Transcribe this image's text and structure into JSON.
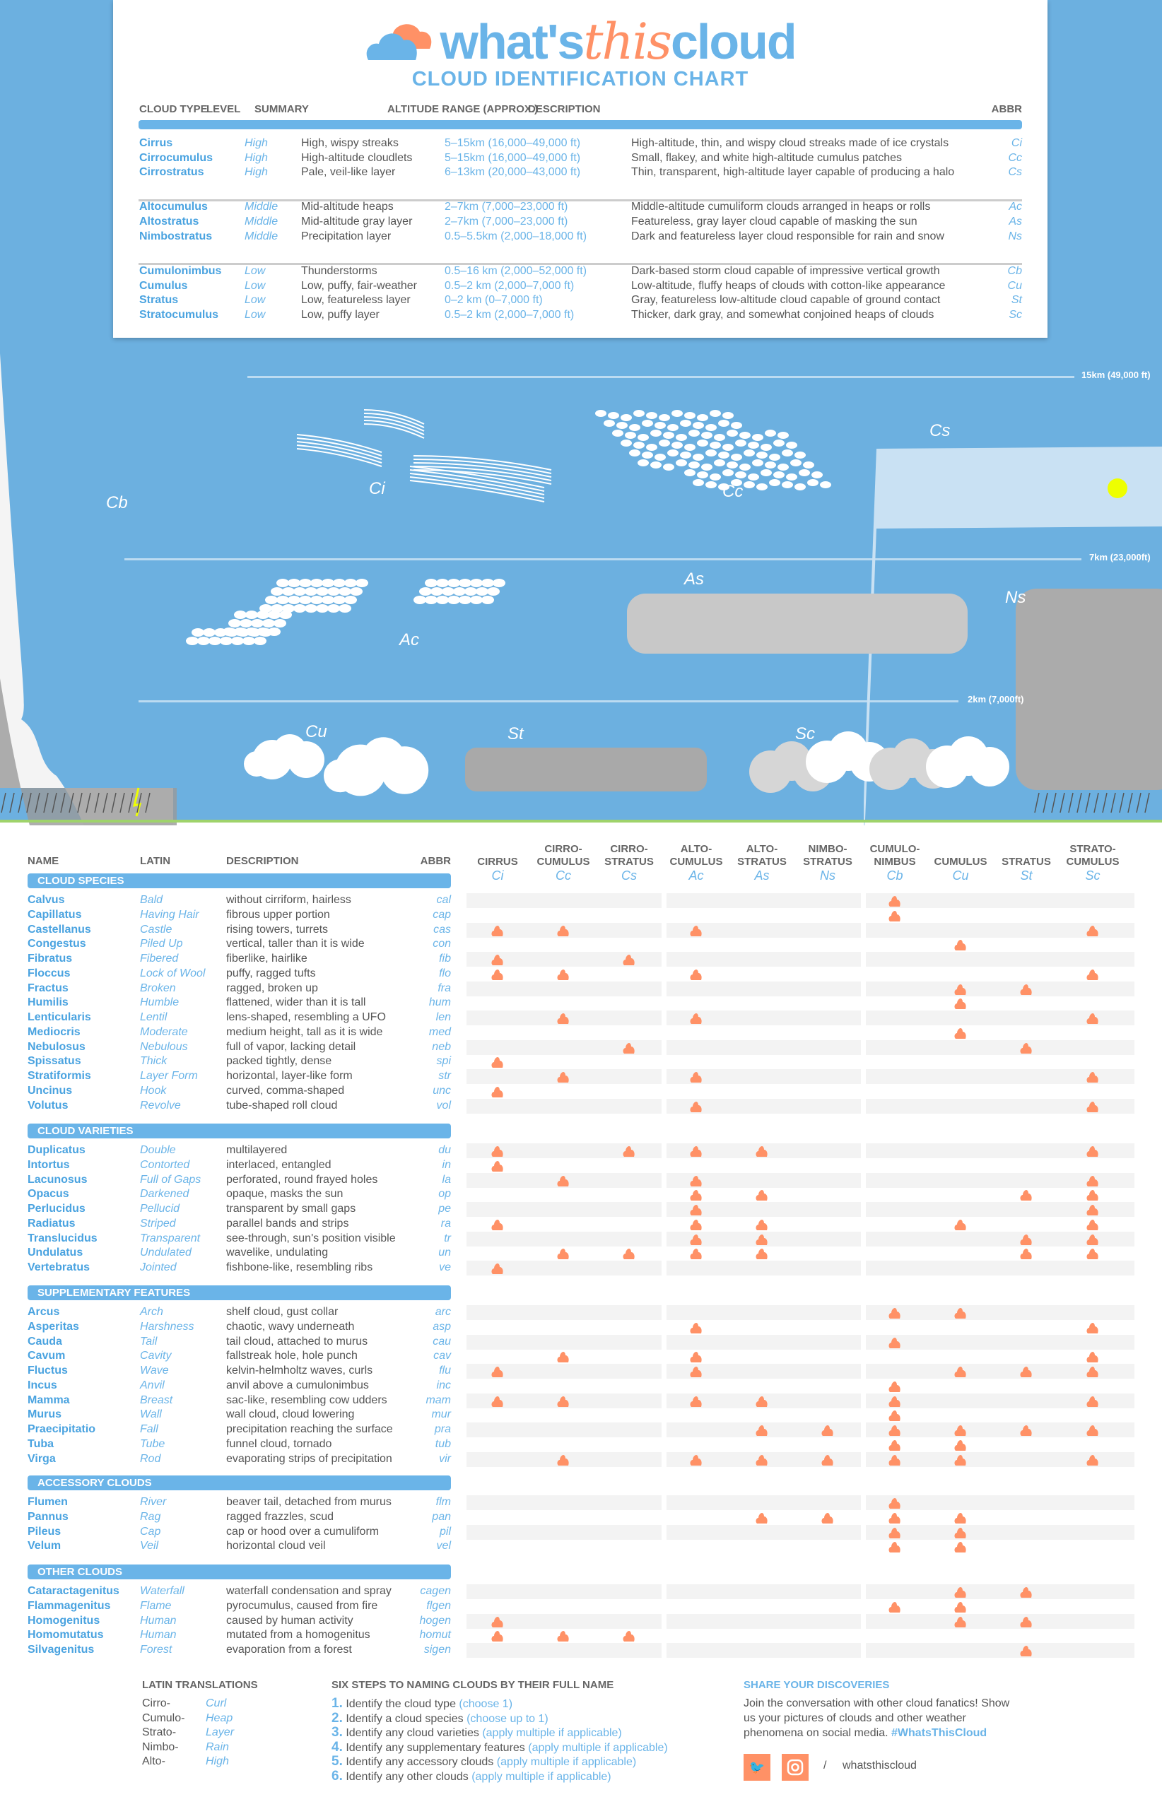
{
  "logo": {
    "part1": "what's",
    "part2": "this",
    "part3": "cloud",
    "subtitle": "CLOUD IDENTIFICATION CHART"
  },
  "top_table": {
    "headers": [
      "CLOUD TYPE",
      "LEVEL",
      "SUMMARY",
      "ALTITUDE RANGE (APPROX.)",
      "DESCRIPTION",
      "ABBR"
    ],
    "groups": [
      [
        {
          "name": "Cirrus",
          "level": "High",
          "summary": "High, wispy streaks",
          "altitude": "5–15km (16,000–49,000 ft)",
          "description": "High-altitude, thin, and wispy cloud streaks made of ice crystals",
          "abbr": "Ci"
        },
        {
          "name": "Cirrocumulus",
          "level": "High",
          "summary": "High-altitude cloudlets",
          "altitude": "5–15km (16,000–49,000 ft)",
          "description": "Small, flakey, and white high-altitude cumulus patches",
          "abbr": "Cc"
        },
        {
          "name": "Cirrostratus",
          "level": "High",
          "summary": "Pale, veil-like layer",
          "altitude": "6–13km (20,000–43,000 ft)",
          "description": "Thin, transparent, high-altitude layer capable of producing a halo",
          "abbr": "Cs"
        }
      ],
      [
        {
          "name": "Altocumulus",
          "level": "Middle",
          "summary": "Mid-altitude heaps",
          "altitude": "2–7km (7,000–23,000 ft)",
          "description": "Middle-altitude cumuliform clouds arranged in heaps or rolls",
          "abbr": "Ac"
        },
        {
          "name": "Altostratus",
          "level": "Middle",
          "summary": "Mid-altitude gray layer",
          "altitude": "2–7km (7,000–23,000 ft)",
          "description": "Featureless, gray layer cloud capable of masking the sun",
          "abbr": "As"
        },
        {
          "name": "Nimbostratus",
          "level": "Middle",
          "summary": "Precipitation layer",
          "altitude": "0.5–5.5km (2,000–18,000 ft)",
          "description": "Dark and featureless layer cloud responsible for rain and snow",
          "abbr": "Ns"
        }
      ],
      [
        {
          "name": "Cumulonimbus",
          "level": "Low",
          "summary": "Thunderstorms",
          "altitude": "0.5–16 km (2,000–52,000 ft)",
          "description": "Dark-based storm cloud capable of impressive vertical growth",
          "abbr": "Cb"
        },
        {
          "name": "Cumulus",
          "level": "Low",
          "summary": "Low, puffy, fair-weather",
          "altitude": "0.5–2 km (2,000–7,000 ft)",
          "description": "Low-altitude, fluffy heaps of clouds with cotton-like appearance",
          "abbr": "Cu"
        },
        {
          "name": "Stratus",
          "level": "Low",
          "summary": "Low, featureless layer",
          "altitude": "0–2 km (0–7,000 ft)",
          "description": "Gray, featureless low-altitude cloud capable of ground contact",
          "abbr": "St"
        },
        {
          "name": "Stratocumulus",
          "level": "Low",
          "summary": "Low, puffy layer",
          "altitude": "0.5–2 km (2,000–7,000 ft)",
          "description": "Thicker, dark gray, and somewhat conjoined heaps of clouds",
          "abbr": "Sc"
        }
      ]
    ]
  },
  "scene": {
    "altitudes": [
      "15km (49,000 ft)",
      "7km (23,000ft)",
      "2km (7,000ft)"
    ],
    "labels": {
      "Cb": "Cb",
      "Ci": "Ci",
      "Cc": "Cc",
      "Cs": "Cs",
      "As": "As",
      "Ac": "Ac",
      "Ns": "Ns",
      "Cu": "Cu",
      "St": "St",
      "Sc": "Sc"
    }
  },
  "matrix": {
    "left_headers": [
      "NAME",
      "LATIN",
      "DESCRIPTION",
      "ABBR"
    ],
    "columns": [
      {
        "label": "CIRRUS",
        "abbr": "Ci"
      },
      {
        "label": "CIRRO-\nCUMULUS",
        "abbr": "Cc"
      },
      {
        "label": "CIRRO-\nSTRATUS",
        "abbr": "Cs"
      },
      {
        "label": "ALTO-\nCUMULUS",
        "abbr": "Ac"
      },
      {
        "label": "ALTO-\nSTRATUS",
        "abbr": "As"
      },
      {
        "label": "NIMBO-\nSTRATUS",
        "abbr": "Ns"
      },
      {
        "label": "CUMULO-\nNIMBUS",
        "abbr": "Cb"
      },
      {
        "label": "CUMULUS",
        "abbr": "Cu"
      },
      {
        "label": "STRATUS",
        "abbr": "St"
      },
      {
        "label": "STRATO-\nCUMULUS",
        "abbr": "Sc"
      }
    ],
    "marker_color": "#ff9166",
    "sections": [
      {
        "title": "CLOUD SPECIES",
        "rows": [
          {
            "name": "Calvus",
            "latin": "Bald",
            "desc": "without cirriform, hairless",
            "abbr": "cal",
            "types": [
              "Cb"
            ]
          },
          {
            "name": "Capillatus",
            "latin": "Having Hair",
            "desc": "fibrous upper portion",
            "abbr": "cap",
            "types": [
              "Cb"
            ]
          },
          {
            "name": "Castellanus",
            "latin": "Castle",
            "desc": "rising towers, turrets",
            "abbr": "cas",
            "types": [
              "Ci",
              "Cc",
              "Ac",
              "Sc"
            ]
          },
          {
            "name": "Congestus",
            "latin": "Piled Up",
            "desc": "vertical, taller than it is wide",
            "abbr": "con",
            "types": [
              "Cu"
            ]
          },
          {
            "name": "Fibratus",
            "latin": "Fibered",
            "desc": "fiberlike, hairlike",
            "abbr": "fib",
            "types": [
              "Ci",
              "Cs"
            ]
          },
          {
            "name": "Floccus",
            "latin": "Lock of Wool",
            "desc": "puffy, ragged tufts",
            "abbr": "flo",
            "types": [
              "Ci",
              "Cc",
              "Ac",
              "Sc"
            ]
          },
          {
            "name": "Fractus",
            "latin": "Broken",
            "desc": "ragged, broken up",
            "abbr": "fra",
            "types": [
              "Cu",
              "St"
            ]
          },
          {
            "name": "Humilis",
            "latin": "Humble",
            "desc": "flattened, wider than it is tall",
            "abbr": "hum",
            "types": [
              "Cu"
            ]
          },
          {
            "name": "Lenticularis",
            "latin": "Lentil",
            "desc": "lens-shaped, resembling a UFO",
            "abbr": "len",
            "types": [
              "Cc",
              "Ac",
              "Sc"
            ]
          },
          {
            "name": "Mediocris",
            "latin": "Moderate",
            "desc": "medium height, tall as it is wide",
            "abbr": "med",
            "types": [
              "Cu"
            ]
          },
          {
            "name": "Nebulosus",
            "latin": "Nebulous",
            "desc": "full of vapor, lacking detail",
            "abbr": "neb",
            "types": [
              "Cs",
              "St"
            ]
          },
          {
            "name": "Spissatus",
            "latin": "Thick",
            "desc": "packed tightly, dense",
            "abbr": "spi",
            "types": [
              "Ci"
            ]
          },
          {
            "name": "Stratiformis",
            "latin": "Layer Form",
            "desc": "horizontal, layer-like form",
            "abbr": "str",
            "types": [
              "Cc",
              "Ac",
              "Sc"
            ]
          },
          {
            "name": "Uncinus",
            "latin": "Hook",
            "desc": "curved, comma-shaped",
            "abbr": "unc",
            "types": [
              "Ci"
            ]
          },
          {
            "name": "Volutus",
            "latin": "Revolve",
            "desc": "tube-shaped roll cloud",
            "abbr": "vol",
            "types": [
              "Ac",
              "Sc"
            ]
          }
        ]
      },
      {
        "title": "CLOUD VARIETIES",
        "rows": [
          {
            "name": "Duplicatus",
            "latin": "Double",
            "desc": "multilayered",
            "abbr": "du",
            "types": [
              "Ci",
              "Cs",
              "Ac",
              "As",
              "Sc"
            ]
          },
          {
            "name": "Intortus",
            "latin": "Contorted",
            "desc": "interlaced, entangled",
            "abbr": "in",
            "types": [
              "Ci"
            ]
          },
          {
            "name": "Lacunosus",
            "latin": "Full of Gaps",
            "desc": "perforated, round frayed holes",
            "abbr": "la",
            "types": [
              "Cc",
              "Ac",
              "Sc"
            ]
          },
          {
            "name": "Opacus",
            "latin": "Darkened",
            "desc": "opaque, masks the sun",
            "abbr": "op",
            "types": [
              "Ac",
              "As",
              "St",
              "Sc"
            ]
          },
          {
            "name": "Perlucidus",
            "latin": "Pellucid",
            "desc": "transparent by small gaps",
            "abbr": "pe",
            "types": [
              "Ac",
              "Sc"
            ]
          },
          {
            "name": "Radiatus",
            "latin": "Striped",
            "desc": "parallel bands and strips",
            "abbr": "ra",
            "types": [
              "Ci",
              "Ac",
              "As",
              "Cu",
              "Sc"
            ]
          },
          {
            "name": "Translucidus",
            "latin": "Transparent",
            "desc": "see-through, sun's position visible",
            "abbr": "tr",
            "types": [
              "Ac",
              "As",
              "St",
              "Sc"
            ]
          },
          {
            "name": "Undulatus",
            "latin": "Undulated",
            "desc": "wavelike, undulating",
            "abbr": "un",
            "types": [
              "Cc",
              "Cs",
              "Ac",
              "As",
              "St",
              "Sc"
            ]
          },
          {
            "name": "Vertebratus",
            "latin": "Jointed",
            "desc": "fishbone-like, resembling ribs",
            "abbr": "ve",
            "types": [
              "Ci"
            ]
          }
        ]
      },
      {
        "title": "SUPPLEMENTARY FEATURES",
        "rows": [
          {
            "name": "Arcus",
            "latin": "Arch",
            "desc": "shelf cloud, gust collar",
            "abbr": "arc",
            "types": [
              "Cb",
              "Cu"
            ]
          },
          {
            "name": "Asperitas",
            "latin": "Harshness",
            "desc": "chaotic, wavy underneath",
            "abbr": "asp",
            "types": [
              "Ac",
              "Sc"
            ]
          },
          {
            "name": "Cauda",
            "latin": "Tail",
            "desc": "tail cloud, attached to murus",
            "abbr": "cau",
            "types": [
              "Cb"
            ]
          },
          {
            "name": "Cavum",
            "latin": "Cavity",
            "desc": "fallstreak hole, hole punch",
            "abbr": "cav",
            "types": [
              "Cc",
              "Ac",
              "Sc"
            ]
          },
          {
            "name": "Fluctus",
            "latin": "Wave",
            "desc": "kelvin-helmholtz waves, curls",
            "abbr": "flu",
            "types": [
              "Ci",
              "Ac",
              "Cu",
              "St",
              "Sc"
            ]
          },
          {
            "name": "Incus",
            "latin": "Anvil",
            "desc": "anvil above a cumulonimbus",
            "abbr": "inc",
            "types": [
              "Cb"
            ]
          },
          {
            "name": "Mamma",
            "latin": "Breast",
            "desc": "sac-like, resembling cow udders",
            "abbr": "mam",
            "types": [
              "Ci",
              "Cc",
              "Ac",
              "As",
              "Cb",
              "Sc"
            ]
          },
          {
            "name": "Murus",
            "latin": "Wall",
            "desc": "wall cloud, cloud lowering",
            "abbr": "mur",
            "types": [
              "Cb"
            ]
          },
          {
            "name": "Praecipitatio",
            "latin": "Fall",
            "desc": "precipitation reaching the surface",
            "abbr": "pra",
            "types": [
              "As",
              "Ns",
              "Cb",
              "Cu",
              "St",
              "Sc"
            ]
          },
          {
            "name": "Tuba",
            "latin": "Tube",
            "desc": "funnel cloud, tornado",
            "abbr": "tub",
            "types": [
              "Cb",
              "Cu"
            ]
          },
          {
            "name": "Virga",
            "latin": "Rod",
            "desc": "evaporating strips of precipitation",
            "abbr": "vir",
            "types": [
              "Cc",
              "Ac",
              "As",
              "Ns",
              "Cb",
              "Cu",
              "Sc"
            ]
          }
        ]
      },
      {
        "title": "ACCESSORY CLOUDS",
        "rows": [
          {
            "name": "Flumen",
            "latin": "River",
            "desc": "beaver tail, detached from murus",
            "abbr": "flm",
            "types": [
              "Cb"
            ]
          },
          {
            "name": "Pannus",
            "latin": "Rag",
            "desc": "ragged frazzles, scud",
            "abbr": "pan",
            "types": [
              "As",
              "Ns",
              "Cb",
              "Cu"
            ]
          },
          {
            "name": "Pileus",
            "latin": "Cap",
            "desc": "cap or hood over a cumuliform",
            "abbr": "pil",
            "types": [
              "Cb",
              "Cu"
            ]
          },
          {
            "name": "Velum",
            "latin": "Veil",
            "desc": "horizontal cloud veil",
            "abbr": "vel",
            "types": [
              "Cb",
              "Cu"
            ]
          }
        ]
      },
      {
        "title": "OTHER CLOUDS",
        "rows": [
          {
            "name": "Cataractagenitus",
            "latin": "Waterfall",
            "desc": "waterfall condensation and spray",
            "abbr": "cagen",
            "types": [
              "Cu",
              "St"
            ]
          },
          {
            "name": "Flammagenitus",
            "latin": "Flame",
            "desc": "pyrocumulus, caused from fire",
            "abbr": "flgen",
            "types": [
              "Cb",
              "Cu"
            ]
          },
          {
            "name": "Homogenitus",
            "latin": "Human",
            "desc": "caused by human activity",
            "abbr": "hogen",
            "types": [
              "Ci",
              "Cu",
              "St"
            ]
          },
          {
            "name": "Homomutatus",
            "latin": "Human",
            "desc": "mutated from a homogenitus",
            "abbr": "homut",
            "types": [
              "Ci",
              "Cc",
              "Cs"
            ]
          },
          {
            "name": "Silvagenitus",
            "latin": "Forest",
            "desc": "evaporation from a forest",
            "abbr": "sigen",
            "types": [
              "St"
            ]
          }
        ]
      }
    ]
  },
  "footer": {
    "latin_title": "LATIN TRANSLATIONS",
    "latin": [
      {
        "prefix": "Cirro-",
        "meaning": "Curl"
      },
      {
        "prefix": "Cumulo-",
        "meaning": "Heap"
      },
      {
        "prefix": "Strato-",
        "meaning": "Layer"
      },
      {
        "prefix": "Nimbo-",
        "meaning": "Rain"
      },
      {
        "prefix": "Alto-",
        "meaning": "High"
      }
    ],
    "steps_title": "SIX STEPS TO NAMING CLOUDS BY THEIR FULL NAME",
    "steps": [
      {
        "num": "1.",
        "text": "Identify the cloud type",
        "note": "(choose 1)"
      },
      {
        "num": "2.",
        "text": "Identify a cloud species",
        "note": "(choose up to 1)"
      },
      {
        "num": "3.",
        "text": "Identify any cloud varieties",
        "note": "(apply multiple if applicable)"
      },
      {
        "num": "4.",
        "text": "Identify any supplementary features",
        "note": "(apply multiple if applicable)"
      },
      {
        "num": "5.",
        "text": "Identify any accessory clouds",
        "note": "(apply multiple if applicable)"
      },
      {
        "num": "6.",
        "text": "Identify any other clouds",
        "note": "(apply multiple if applicable)"
      }
    ],
    "share_title": "SHARE YOUR DISCOVERIES",
    "share_text_1": "Join the conversation with other cloud fanatics! Show",
    "share_text_2": "us your pictures of clouds and other weather",
    "share_text_3": "phenomena on social media.",
    "hashtag": "#WhatsThisCloud",
    "social_separator": "/",
    "handle": "whatsthiscloud",
    "icons": [
      "twitter-icon",
      "instagram-icon"
    ]
  },
  "colors": {
    "sky": "#6cb0e0",
    "brand_blue": "#6ab4e8",
    "brand_orange": "#ff9166"
  }
}
